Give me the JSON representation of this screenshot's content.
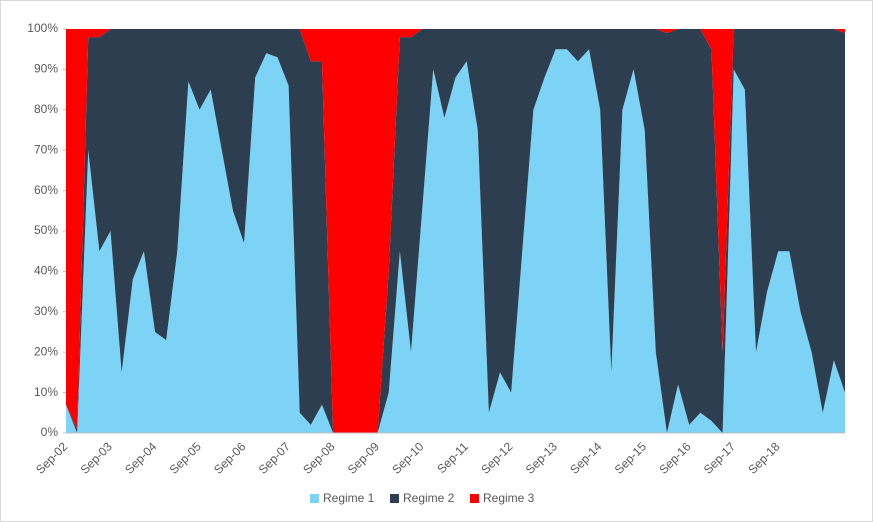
{
  "chart_data": {
    "type": "area_stacked",
    "categories": [
      "Sep-02",
      null,
      null,
      null,
      "Sep-03",
      null,
      null,
      null,
      "Sep-04",
      null,
      null,
      null,
      "Sep-05",
      null,
      null,
      null,
      "Sep-06",
      null,
      null,
      null,
      "Sep-07",
      null,
      null,
      null,
      "Sep-08",
      null,
      null,
      null,
      "Sep-09",
      null,
      null,
      null,
      "Sep-10",
      null,
      null,
      null,
      "Sep-11",
      null,
      null,
      null,
      "Sep-12",
      null,
      null,
      null,
      "Sep-13",
      null,
      null,
      null,
      "Sep-14",
      null,
      null,
      null,
      "Sep-15",
      null,
      null,
      null,
      "Sep-16",
      null,
      null,
      null,
      "Sep-17",
      null,
      null,
      null,
      "Sep-18",
      null,
      null,
      null,
      null,
      null,
      null
    ],
    "series": [
      {
        "name": "Regime 1",
        "color": "#7dd3f5",
        "values": [
          7,
          0,
          70,
          45,
          50,
          15,
          38,
          45,
          25,
          23,
          45,
          87,
          80,
          85,
          70,
          55,
          47,
          88,
          94,
          93,
          86,
          5,
          2,
          7,
          0,
          0,
          0,
          0,
          0,
          10,
          45,
          20,
          55,
          90,
          78,
          88,
          92,
          75,
          5,
          15,
          10,
          45,
          80,
          88,
          95,
          95,
          92,
          95,
          80,
          15,
          80,
          90,
          75,
          20,
          0,
          12,
          2,
          5,
          3,
          0,
          90,
          85,
          20,
          35,
          45,
          45,
          30,
          20,
          5,
          18,
          10
        ]
      },
      {
        "name": "Regime 2",
        "color": "#2d3e50",
        "values": [
          0,
          1,
          28,
          53,
          50,
          85,
          62,
          55,
          75,
          77,
          55,
          13,
          20,
          15,
          30,
          45,
          53,
          12,
          6,
          7,
          14,
          95,
          90,
          85,
          0,
          0,
          0,
          0,
          0,
          30,
          53,
          78,
          45,
          10,
          22,
          12,
          8,
          25,
          95,
          85,
          90,
          55,
          20,
          12,
          5,
          5,
          8,
          5,
          20,
          85,
          20,
          10,
          25,
          80,
          99,
          88,
          98,
          95,
          92,
          20,
          10,
          15,
          80,
          65,
          55,
          55,
          70,
          80,
          95,
          82,
          89
        ]
      },
      {
        "name": "Regime 3",
        "color": "#ff0000",
        "values": [
          93,
          99,
          2,
          2,
          0,
          0,
          0,
          0,
          0,
          0,
          0,
          0,
          0,
          0,
          0,
          0,
          0,
          0,
          0,
          0,
          0,
          0,
          8,
          8,
          100,
          100,
          100,
          100,
          100,
          60,
          2,
          2,
          0,
          0,
          0,
          0,
          0,
          0,
          0,
          0,
          0,
          0,
          0,
          0,
          0,
          0,
          0,
          0,
          0,
          0,
          0,
          0,
          0,
          0,
          1,
          0,
          0,
          0,
          5,
          80,
          0,
          0,
          0,
          0,
          0,
          0,
          0,
          0,
          0,
          0,
          1
        ]
      }
    ],
    "ylim": [
      0,
      100
    ],
    "yticks": [
      {
        "value": 0,
        "label": "0%"
      },
      {
        "value": 10,
        "label": "10%"
      },
      {
        "value": 20,
        "label": "20%"
      },
      {
        "value": 30,
        "label": "30%"
      },
      {
        "value": 40,
        "label": "40%"
      },
      {
        "value": 50,
        "label": "50%"
      },
      {
        "value": 60,
        "label": "60%"
      },
      {
        "value": 70,
        "label": "70%"
      },
      {
        "value": 80,
        "label": "80%"
      },
      {
        "value": 90,
        "label": "90%"
      },
      {
        "value": 100,
        "label": "100%"
      }
    ],
    "legend": "bottom"
  }
}
